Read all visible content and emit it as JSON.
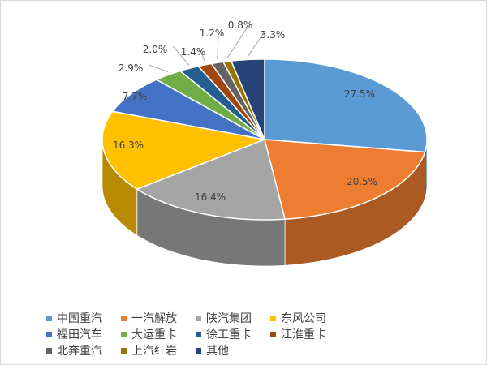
{
  "chart_data": {
    "type": "pie",
    "style": "3d",
    "start": "top, clockwise",
    "legend_position": "bottom",
    "categories": [
      "中国重汽",
      "一汽解放",
      "陕汽集团",
      "东风公司",
      "福田汽车",
      "大运重卡",
      "徐工重卡",
      "江淮重卡",
      "北奔重汽",
      "上汽红岩",
      "其他"
    ],
    "values": [
      27.5,
      20.5,
      16.4,
      16.3,
      7.7,
      2.9,
      2.0,
      1.4,
      1.2,
      0.8,
      3.3
    ],
    "labels": [
      "27.5%",
      "20.5%",
      "16.4%",
      "16.3%",
      "7.7%",
      "2.9%",
      "2.0%",
      "1.4%",
      "1.2%",
      "0.8%",
      "3.3%"
    ],
    "colors": [
      "#5B9BD5",
      "#ED7D31",
      "#A5A5A5",
      "#FFC000",
      "#4472C4",
      "#70AD47",
      "#255E91",
      "#9E480E",
      "#636363",
      "#997300",
      "#264478"
    ]
  }
}
